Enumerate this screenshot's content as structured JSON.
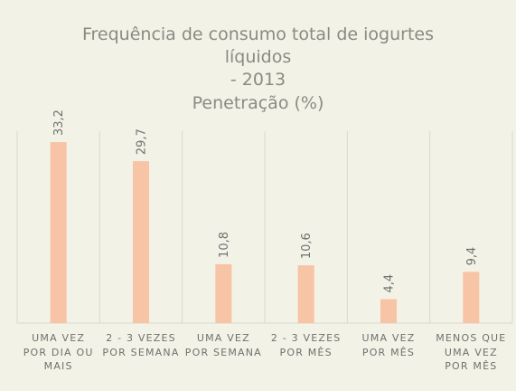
{
  "chart_data": {
    "type": "bar",
    "title_lines": [
      "Frequência de consumo total de iogurtes",
      "líquidos",
      "- 2013",
      "Penetração (%)"
    ],
    "categories": [
      [
        "UMA VEZ",
        "POR DIA OU",
        "MAIS"
      ],
      [
        "2 - 3 VEZES",
        "POR SEMANA"
      ],
      [
        "UMA VEZ",
        "POR SEMANA"
      ],
      [
        "2 - 3 VEZES",
        "POR MÊS"
      ],
      [
        "UMA VEZ",
        "POR MÊS"
      ],
      [
        "MENOS QUE",
        "UMA VEZ",
        "POR MÊS"
      ]
    ],
    "values": [
      33.2,
      29.7,
      10.8,
      10.6,
      4.4,
      9.4
    ],
    "data_labels": [
      "33,2",
      "29,7",
      "10,8",
      "10,6",
      "4,4",
      "9,4"
    ],
    "ylim": [
      0,
      33.2
    ],
    "grid": "vertical category separators",
    "legend": "none",
    "colors": {
      "bar": "#f7c4a6",
      "title": "#8a8a84",
      "label": "#707070",
      "grid": "#d9d8cc",
      "background": "#f3f2e6"
    }
  }
}
